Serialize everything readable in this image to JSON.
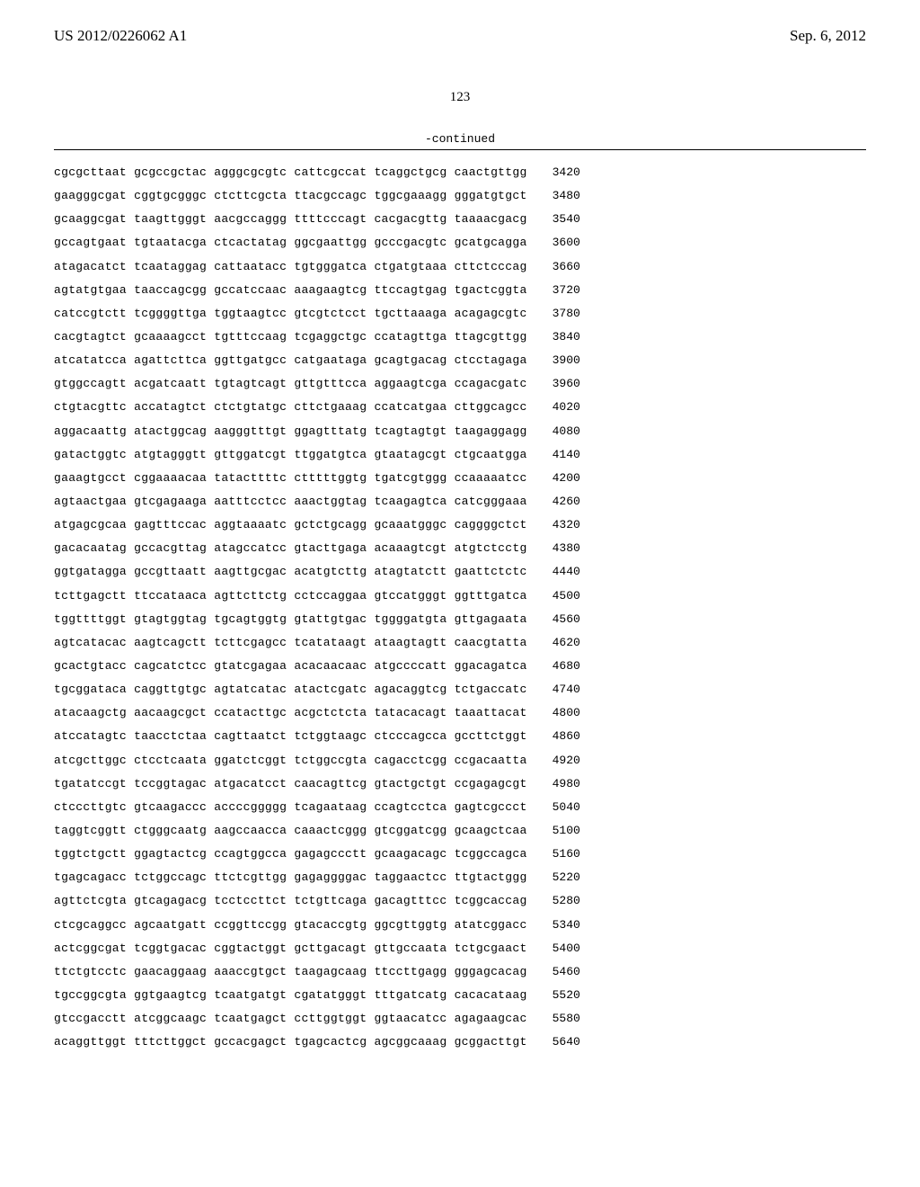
{
  "header": {
    "patent_number": "US 2012/0226062 A1",
    "date": "Sep. 6, 2012"
  },
  "page_number": "123",
  "continued_label": "-continued",
  "sequence": {
    "font_family": "Courier New",
    "font_size_pt": 10,
    "line_spacing": 1.05,
    "text_color": "#000000",
    "background_color": "#ffffff",
    "lines": [
      {
        "groups": [
          "cgcgcttaat",
          "gcgccgctac",
          "agggcgcgtc",
          "cattcgccat",
          "tcaggctgcg",
          "caactgttgg"
        ],
        "pos": 3420
      },
      {
        "groups": [
          "gaagggcgat",
          "cggtgcgggc",
          "ctcttcgcta",
          "ttacgccagc",
          "tggcgaaagg",
          "gggatgtgct"
        ],
        "pos": 3480
      },
      {
        "groups": [
          "gcaaggcgat",
          "taagttgggt",
          "aacgccaggg",
          "ttttcccagt",
          "cacgacgttg",
          "taaaacgacg"
        ],
        "pos": 3540
      },
      {
        "groups": [
          "gccagtgaat",
          "tgtaatacga",
          "ctcactatag",
          "ggcgaattgg",
          "gcccgacgtc",
          "gcatgcagga"
        ],
        "pos": 3600
      },
      {
        "groups": [
          "atagacatct",
          "tcaataggag",
          "cattaatacc",
          "tgtgggatca",
          "ctgatgtaaa",
          "cttctcccag"
        ],
        "pos": 3660
      },
      {
        "groups": [
          "agtatgtgaa",
          "taaccagcgg",
          "gccatccaac",
          "aaagaagtcg",
          "ttccagtgag",
          "tgactcggta"
        ],
        "pos": 3720
      },
      {
        "groups": [
          "catccgtctt",
          "tcggggttga",
          "tggtaagtcc",
          "gtcgtctcct",
          "tgcttaaaga",
          "acagagcgtc"
        ],
        "pos": 3780
      },
      {
        "groups": [
          "cacgtagtct",
          "gcaaaagcct",
          "tgtttccaag",
          "tcgaggctgc",
          "ccatagttga",
          "ttagcgttgg"
        ],
        "pos": 3840
      },
      {
        "groups": [
          "atcatatcca",
          "agattcttca",
          "ggttgatgcc",
          "catgaataga",
          "gcagtgacag",
          "ctcctagaga"
        ],
        "pos": 3900
      },
      {
        "groups": [
          "gtggccagtt",
          "acgatcaatt",
          "tgtagtcagt",
          "gttgtttcca",
          "aggaagtcga",
          "ccagacgatc"
        ],
        "pos": 3960
      },
      {
        "groups": [
          "ctgtacgttc",
          "accatagtct",
          "ctctgtatgc",
          "cttctgaaag",
          "ccatcatgaa",
          "cttggcagcc"
        ],
        "pos": 4020
      },
      {
        "groups": [
          "aggacaattg",
          "atactggcag",
          "aagggtttgt",
          "ggagtttatg",
          "tcagtagtgt",
          "taagaggagg"
        ],
        "pos": 4080
      },
      {
        "groups": [
          "gatactggtc",
          "atgtagggtt",
          "gttggatcgt",
          "ttggatgtca",
          "gtaatagcgt",
          "ctgcaatgga"
        ],
        "pos": 4140
      },
      {
        "groups": [
          "gaaagtgcct",
          "cggaaaacaa",
          "tatacttttc",
          "ctttttggtg",
          "tgatcgtggg",
          "ccaaaaatcc"
        ],
        "pos": 4200
      },
      {
        "groups": [
          "agtaactgaa",
          "gtcgagaaga",
          "aatttcctcc",
          "aaactggtag",
          "tcaagagtca",
          "catcgggaaa"
        ],
        "pos": 4260
      },
      {
        "groups": [
          "atgagcgcaa",
          "gagtttccac",
          "aggtaaaatc",
          "gctctgcagg",
          "gcaaatgggc",
          "caggggctct"
        ],
        "pos": 4320
      },
      {
        "groups": [
          "gacacaatag",
          "gccacgttag",
          "atagccatcc",
          "gtacttgaga",
          "acaaagtcgt",
          "atgtctcctg"
        ],
        "pos": 4380
      },
      {
        "groups": [
          "ggtgatagga",
          "gccgttaatt",
          "aagttgcgac",
          "acatgtcttg",
          "atagtatctt",
          "gaattctctc"
        ],
        "pos": 4440
      },
      {
        "groups": [
          "tcttgagctt",
          "ttccataaca",
          "agttcttctg",
          "cctccaggaa",
          "gtccatgggt",
          "ggtttgatca"
        ],
        "pos": 4500
      },
      {
        "groups": [
          "tggttttggt",
          "gtagtggtag",
          "tgcagtggtg",
          "gtattgtgac",
          "tggggatgta",
          "gttgagaata"
        ],
        "pos": 4560
      },
      {
        "groups": [
          "agtcatacac",
          "aagtcagctt",
          "tcttcgagcc",
          "tcatataagt",
          "ataagtagtt",
          "caacgtatta"
        ],
        "pos": 4620
      },
      {
        "groups": [
          "gcactgtacc",
          "cagcatctcc",
          "gtatcgagaa",
          "acacaacaac",
          "atgccccatt",
          "ggacagatca"
        ],
        "pos": 4680
      },
      {
        "groups": [
          "tgcggataca",
          "caggttgtgc",
          "agtatcatac",
          "atactcgatc",
          "agacaggtcg",
          "tctgaccatc"
        ],
        "pos": 4740
      },
      {
        "groups": [
          "atacaagctg",
          "aacaagcgct",
          "ccatacttgc",
          "acgctctcta",
          "tatacacagt",
          "taaattacat"
        ],
        "pos": 4800
      },
      {
        "groups": [
          "atccatagtc",
          "taacctctaa",
          "cagttaatct",
          "tctggtaagc",
          "ctcccagcca",
          "gccttctggt"
        ],
        "pos": 4860
      },
      {
        "groups": [
          "atcgcttggc",
          "ctcctcaata",
          "ggatctcggt",
          "tctggccgta",
          "cagacctcgg",
          "ccgacaatta"
        ],
        "pos": 4920
      },
      {
        "groups": [
          "tgatatccgt",
          "tccggtagac",
          "atgacatcct",
          "caacagttcg",
          "gtactgctgt",
          "ccgagagcgt"
        ],
        "pos": 4980
      },
      {
        "groups": [
          "ctcccttgtc",
          "gtcaagaccc",
          "accccggggg",
          "tcagaataag",
          "ccagtcctca",
          "gagtcgccct"
        ],
        "pos": 5040
      },
      {
        "groups": [
          "taggtcggtt",
          "ctgggcaatg",
          "aagccaacca",
          "caaactcggg",
          "gtcggatcgg",
          "gcaagctcaa"
        ],
        "pos": 5100
      },
      {
        "groups": [
          "tggtctgctt",
          "ggagtactcg",
          "ccagtggcca",
          "gagagccctt",
          "gcaagacagc",
          "tcggccagca"
        ],
        "pos": 5160
      },
      {
        "groups": [
          "tgagcagacc",
          "tctggccagc",
          "ttctcgttgg",
          "gagaggggac",
          "taggaactcc",
          "ttgtactggg"
        ],
        "pos": 5220
      },
      {
        "groups": [
          "agttctcgta",
          "gtcagagacg",
          "tcctccttct",
          "tctgttcaga",
          "gacagtttcc",
          "tcggcaccag"
        ],
        "pos": 5280
      },
      {
        "groups": [
          "ctcgcaggcc",
          "agcaatgatt",
          "ccggttccgg",
          "gtacaccgtg",
          "ggcgttggtg",
          "atatcggacc"
        ],
        "pos": 5340
      },
      {
        "groups": [
          "actcggcgat",
          "tcggtgacac",
          "cggtactggt",
          "gcttgacagt",
          "gttgccaata",
          "tctgcgaact"
        ],
        "pos": 5400
      },
      {
        "groups": [
          "ttctgtcctc",
          "gaacaggaag",
          "aaaccgtgct",
          "taagagcaag",
          "ttccttgagg",
          "gggagcacag"
        ],
        "pos": 5460
      },
      {
        "groups": [
          "tgccggcgta",
          "ggtgaagtcg",
          "tcaatgatgt",
          "cgatatgggt",
          "tttgatcatg",
          "cacacataag"
        ],
        "pos": 5520
      },
      {
        "groups": [
          "gtccgacctt",
          "atcggcaagc",
          "tcaatgagct",
          "ccttggtggt",
          "ggtaacatcc",
          "agagaagcac"
        ],
        "pos": 5580
      },
      {
        "groups": [
          "acaggttggt",
          "tttcttggct",
          "gccacgagct",
          "tgagcactcg",
          "agcggcaaag",
          "gcggacttgt"
        ],
        "pos": 5640
      }
    ]
  }
}
